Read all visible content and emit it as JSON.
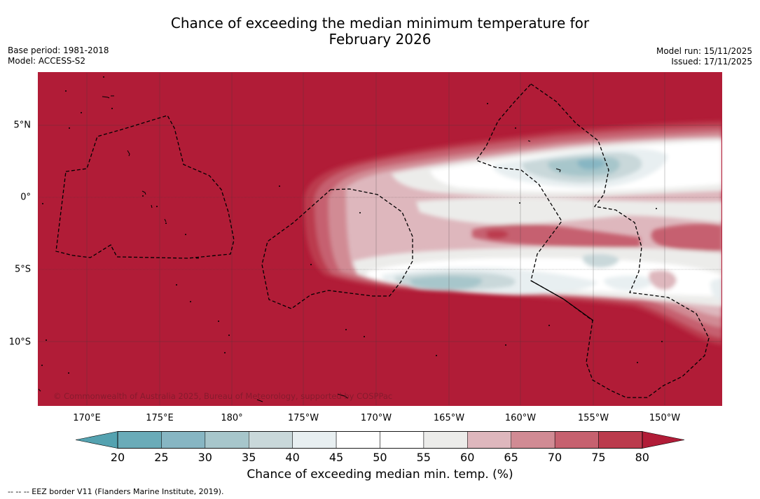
{
  "title_line1": "Chance of exceeding the median minimum temperature for",
  "title_line2": "February 2026",
  "base_period": "Base period: 1981-2018",
  "model": "Model: ACCESS-S2",
  "model_run": "Model run: 15/11/2025",
  "issued": "Issued: 17/11/2025",
  "copyright": "© Commonwealth of Australia 2025, Bureau of Meteorology, supported by COSPPac",
  "lon_labels": [
    "170°E",
    "175°E",
    "180°",
    "175°W",
    "170°W",
    "165°W",
    "160°W",
    "155°W",
    "150°W"
  ],
  "lat_labels": [
    "5°N",
    "0°",
    "5°S",
    "10°S"
  ],
  "colorbar_ticks": [
    "20",
    "25",
    "30",
    "35",
    "40",
    "45",
    "50",
    "55",
    "60",
    "65",
    "70",
    "75",
    "80"
  ],
  "colorbar_title": "Chance of exceeding median min. temp. (%)",
  "footnote": "--  --  -- EEZ border V11 (Flanders Marine Institute, 2019).",
  "colors": {
    "bins": [
      "#6aabb8",
      "#87b6c3",
      "#a7c6cb",
      "#c9d8da",
      "#e8eff1",
      "#ffffff",
      "#ffffff",
      "#ececea",
      "#deb7bd",
      "#d18b94",
      "#c6616f",
      "#bb3b4d"
    ],
    "under": "#54a2b0",
    "over": "#b11c37"
  }
}
